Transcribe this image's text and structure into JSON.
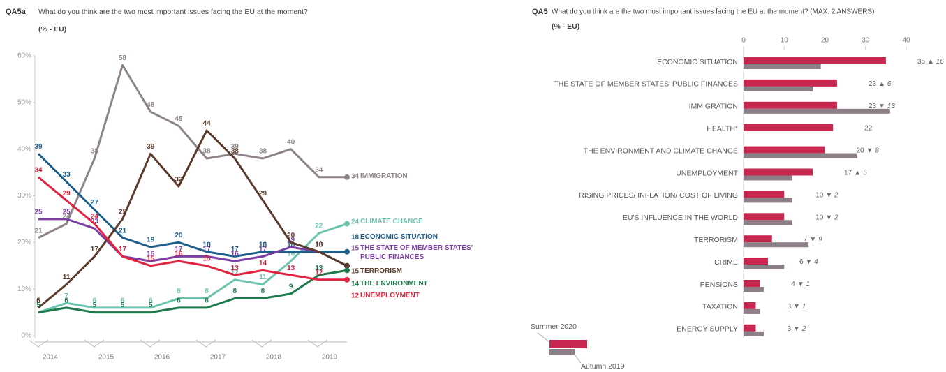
{
  "chart_data": [
    {
      "type": "line",
      "code": "QA5a",
      "title": "What do you think are the two most important issues facing the EU at the moment?",
      "subtitle": "(% - EU)",
      "categories": [
        null,
        null,
        null,
        null,
        null,
        null,
        null,
        null,
        null,
        null,
        null,
        null
      ],
      "x_axis_labels": [
        "2014",
        "2015",
        "2016",
        "2017",
        "2018",
        "2019"
      ],
      "ylim": [
        0,
        60
      ],
      "yticks": [
        {
          "value": 0,
          "label": "0%"
        },
        {
          "value": 10,
          "label": "10%"
        },
        {
          "value": 20,
          "label": "20%"
        },
        {
          "value": 30,
          "label": "30%"
        },
        {
          "value": 40,
          "label": "40%"
        },
        {
          "value": 50,
          "label": "50%"
        },
        {
          "value": 60,
          "label": "60%"
        }
      ],
      "grid": false,
      "series": [
        {
          "name": "IMMIGRATION",
          "color": "#8e8489",
          "values": [
            21,
            24,
            38,
            58,
            48,
            45,
            38,
            39,
            38,
            40,
            34,
            34
          ]
        },
        {
          "name": "CLIMATE CHANGE",
          "color": "#6cc4ae",
          "values": [
            5,
            7,
            6,
            6,
            6,
            8,
            8,
            12,
            11,
            16,
            22,
            24
          ]
        },
        {
          "name": "ECONOMIC SITUATION",
          "color": "#1d5e8a",
          "values": [
            39,
            33,
            27,
            21,
            19,
            20,
            18,
            17,
            18,
            18,
            18,
            18
          ]
        },
        {
          "name": "THE STATE OF MEMBER STATES' PUBLIC FINANCES",
          "color": "#7b3fa3",
          "values": [
            25,
            25,
            23,
            17,
            16,
            17,
            17,
            16,
            17,
            19,
            18,
            15
          ]
        },
        {
          "name": "TERRORISM",
          "color": "#5b3b2b",
          "values": [
            6,
            11,
            17,
            25,
            39,
            32,
            44,
            38,
            29,
            20,
            18,
            15
          ]
        },
        {
          "name": "THE ENVIRONMENT",
          "color": "#1f7a4b",
          "values": [
            5,
            6,
            5,
            5,
            5,
            6,
            6,
            8,
            8,
            9,
            13,
            14
          ]
        },
        {
          "name": "UNEMPLOYMENT",
          "color": "#e0243f",
          "values": [
            34,
            29,
            24,
            17,
            15,
            16,
            15,
            13,
            14,
            13,
            12,
            12
          ]
        }
      ]
    },
    {
      "type": "hbar",
      "code": "QA5",
      "title": "What do you think are the two most important issues facing the EU at the moment? (MAX. 2 ANSWERS)",
      "subtitle": "(% - EU)",
      "categories": [
        "ECONOMIC SITUATION",
        "THE STATE OF MEMBER STATES' PUBLIC FINANCES",
        "IMMIGRATION",
        "HEALTH*",
        "THE ENVIRONMENT AND CLIMATE CHANGE",
        "UNEMPLOYMENT",
        "RISING PRICES/ INFLATION/ COST OF LIVING",
        "EU'S INFLUENCE IN THE WORLD",
        "TERRORISM",
        "CRIME",
        "PENSIONS",
        "TAXATION",
        "ENERGY SUPPLY"
      ],
      "xlim": [
        0,
        40
      ],
      "xticks": [
        0,
        10,
        20,
        30,
        40
      ],
      "series": [
        {
          "name": "Summer 2020",
          "color": "#c8284f",
          "values": [
            35,
            23,
            23,
            22,
            20,
            17,
            10,
            10,
            7,
            6,
            4,
            3,
            3
          ]
        },
        {
          "name": "Autumn 2019",
          "color": "#8d7f87",
          "values": [
            19,
            17,
            36,
            null,
            28,
            12,
            12,
            12,
            16,
            10,
            5,
            4,
            5
          ]
        }
      ],
      "change_labels": [
        "▲ 16",
        "▲ 6",
        "▼ 13",
        null,
        "▼ 8",
        "▲ 5",
        "▼ 2",
        "▼ 2",
        "▼ 9",
        "▼ 4",
        "▼ 1",
        "▼ 1",
        "▼ 2"
      ]
    }
  ]
}
